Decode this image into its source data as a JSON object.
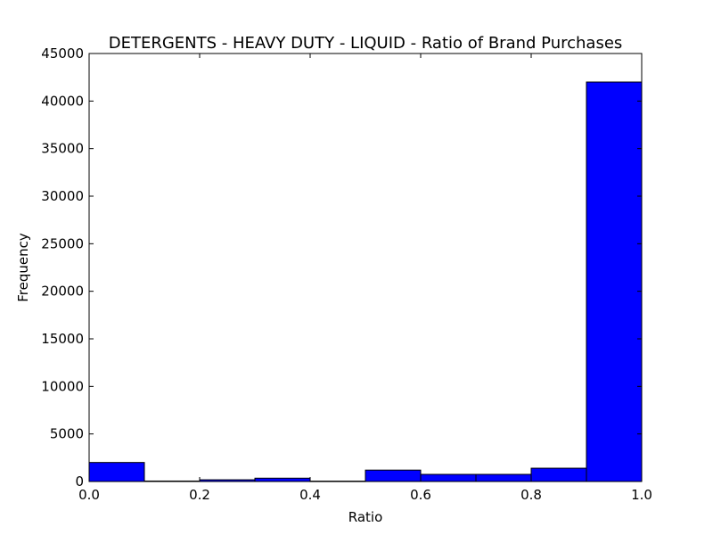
{
  "chart_data": {
    "type": "bar",
    "title": "DETERGENTS - HEAVY DUTY - LIQUID - Ratio of Brand Purchases",
    "xlabel": "Ratio",
    "ylabel": "Frequency",
    "xlim": [
      0.0,
      1.0
    ],
    "ylim": [
      0,
      45000
    ],
    "x_ticks": [
      "0.0",
      "0.2",
      "0.4",
      "0.6",
      "0.8",
      "1.0"
    ],
    "y_ticks": [
      "0",
      "5000",
      "10000",
      "15000",
      "20000",
      "25000",
      "30000",
      "35000",
      "40000",
      "45000"
    ],
    "bins": [
      {
        "start": 0.0,
        "end": 0.1,
        "value": 2000
      },
      {
        "start": 0.1,
        "end": 0.2,
        "value": 50
      },
      {
        "start": 0.2,
        "end": 0.3,
        "value": 180
      },
      {
        "start": 0.3,
        "end": 0.4,
        "value": 350
      },
      {
        "start": 0.4,
        "end": 0.5,
        "value": 40
      },
      {
        "start": 0.5,
        "end": 0.6,
        "value": 1200
      },
      {
        "start": 0.6,
        "end": 0.7,
        "value": 750
      },
      {
        "start": 0.7,
        "end": 0.8,
        "value": 750
      },
      {
        "start": 0.8,
        "end": 0.9,
        "value": 1400
      },
      {
        "start": 0.9,
        "end": 1.0,
        "value": 42000
      }
    ],
    "bar_color": "#0000ff",
    "edge_color": "#000000",
    "grid": false,
    "legend": "none"
  }
}
